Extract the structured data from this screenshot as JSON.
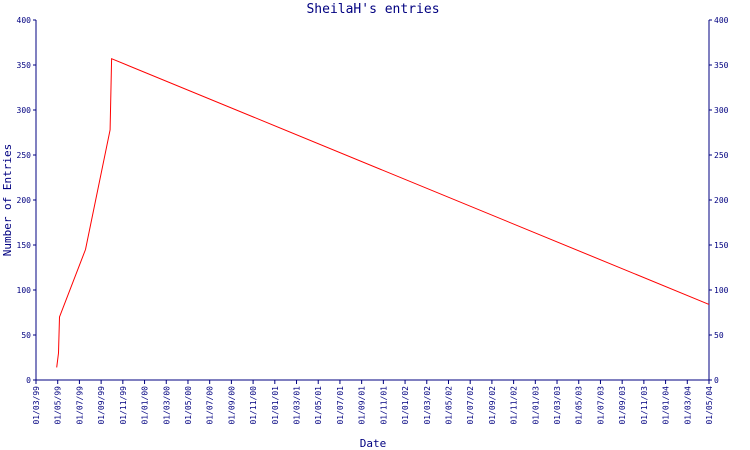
{
  "chart_data": {
    "type": "line",
    "title": "SheilaH's entries",
    "xlabel": "Date",
    "ylabel": "Number of Entries",
    "ylim": [
      0,
      400
    ],
    "yticks": [
      0,
      50,
      100,
      150,
      200,
      250,
      300,
      350,
      400
    ],
    "x_tick_labels": [
      "01/03/99",
      "01/05/99",
      "01/07/99",
      "01/09/99",
      "01/11/99",
      "01/01/00",
      "01/03/00",
      "01/05/00",
      "01/07/00",
      "01/09/00",
      "01/11/00",
      "01/01/01",
      "01/03/01",
      "01/05/01",
      "01/07/01",
      "01/09/01",
      "01/11/01",
      "01/01/02",
      "01/03/02",
      "01/05/02",
      "01/07/02",
      "01/09/02",
      "01/11/02",
      "01/01/03",
      "01/03/03",
      "01/05/03",
      "01/07/03",
      "01/09/03",
      "01/11/03",
      "01/01/04",
      "01/03/04",
      "01/05/04"
    ],
    "grid": false,
    "line_color": "#ff0000",
    "axis_color": "#000080",
    "series": [
      {
        "points": [
          {
            "x": "1999-04-28",
            "y": 14
          },
          {
            "x": "1999-05-03",
            "y": 30
          },
          {
            "x": "1999-05-06",
            "y": 70
          },
          {
            "x": "1999-07-18",
            "y": 145
          },
          {
            "x": "1999-09-25",
            "y": 278
          },
          {
            "x": "1999-09-29",
            "y": 357
          },
          {
            "x": "2004-05-01",
            "y": 84
          }
        ]
      }
    ]
  }
}
